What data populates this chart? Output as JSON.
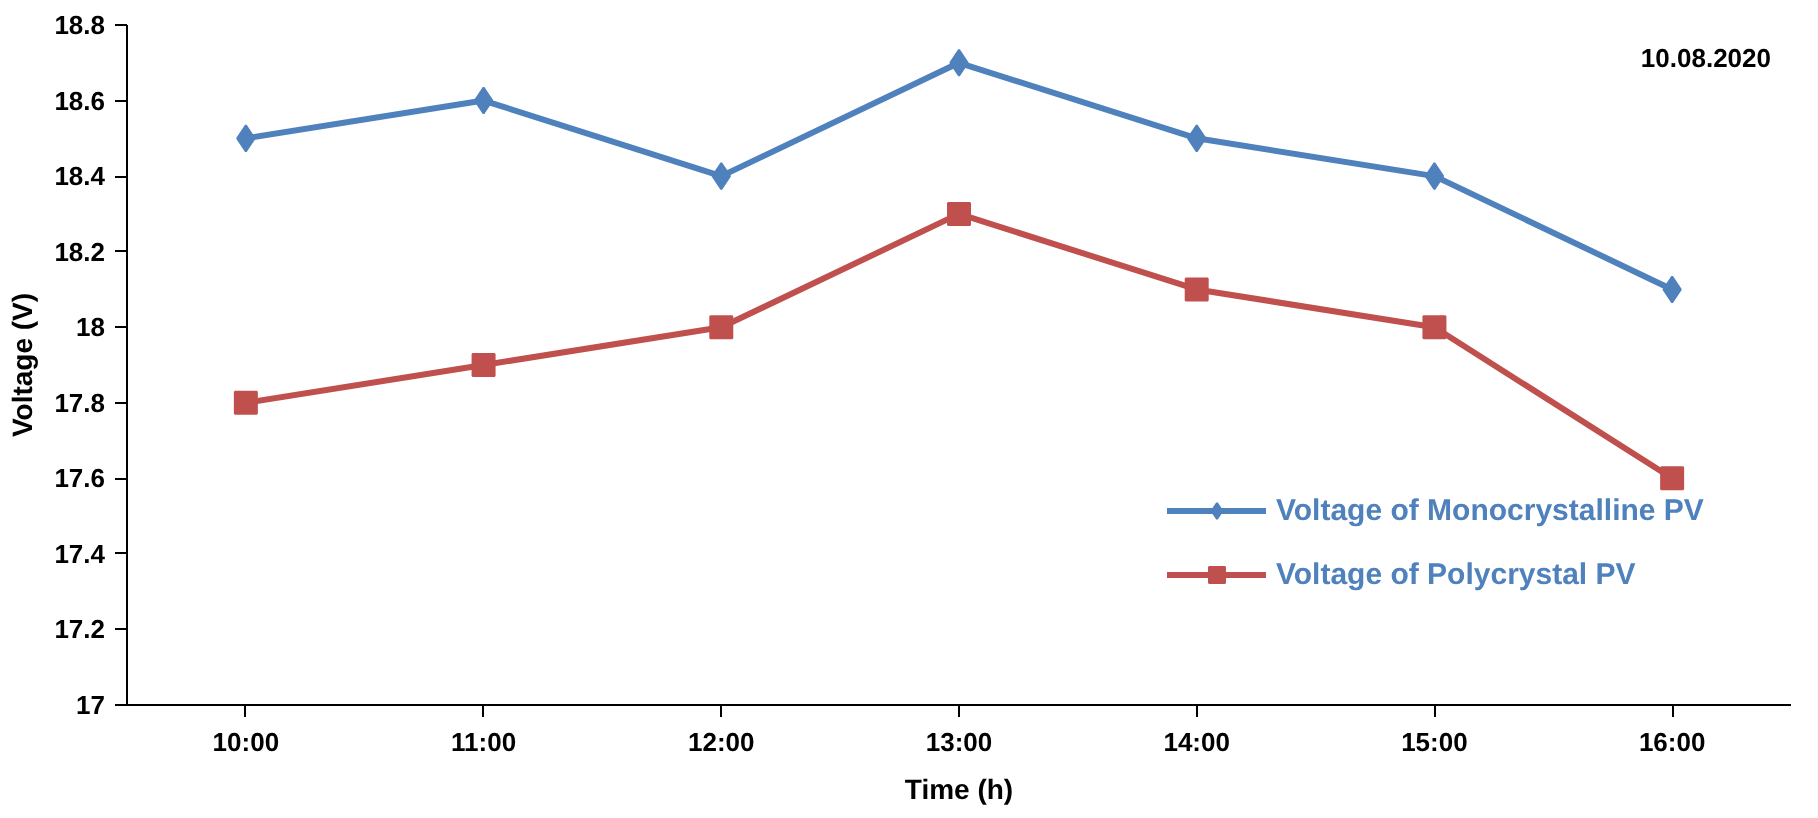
{
  "chart_data": {
    "type": "line",
    "xlabel": "Time (h)",
    "ylabel": "Voltage (V)",
    "categories": [
      "10:00",
      "11:00",
      "12:00",
      "13:00",
      "14:00",
      "15:00",
      "16:00"
    ],
    "series": [
      {
        "name": "Voltage of Monocrystalline PV",
        "color": "#4f81bd",
        "marker": "diamond",
        "values": [
          18.5,
          18.6,
          18.4,
          18.7,
          18.5,
          18.4,
          18.1
        ]
      },
      {
        "name": "Voltage of Polycrystal PV",
        "color": "#c0504d",
        "marker": "square",
        "values": [
          17.8,
          17.9,
          18.0,
          18.3,
          18.1,
          18.0,
          17.6
        ]
      }
    ],
    "ylim": [
      17,
      18.8
    ],
    "yticks": [
      17,
      17.2,
      17.4,
      17.6,
      17.8,
      18,
      18.2,
      18.4,
      18.6,
      18.8
    ],
    "annotations": [
      "10.08.2020"
    ],
    "grid": false,
    "legend": "right",
    "line_style": "solid"
  }
}
